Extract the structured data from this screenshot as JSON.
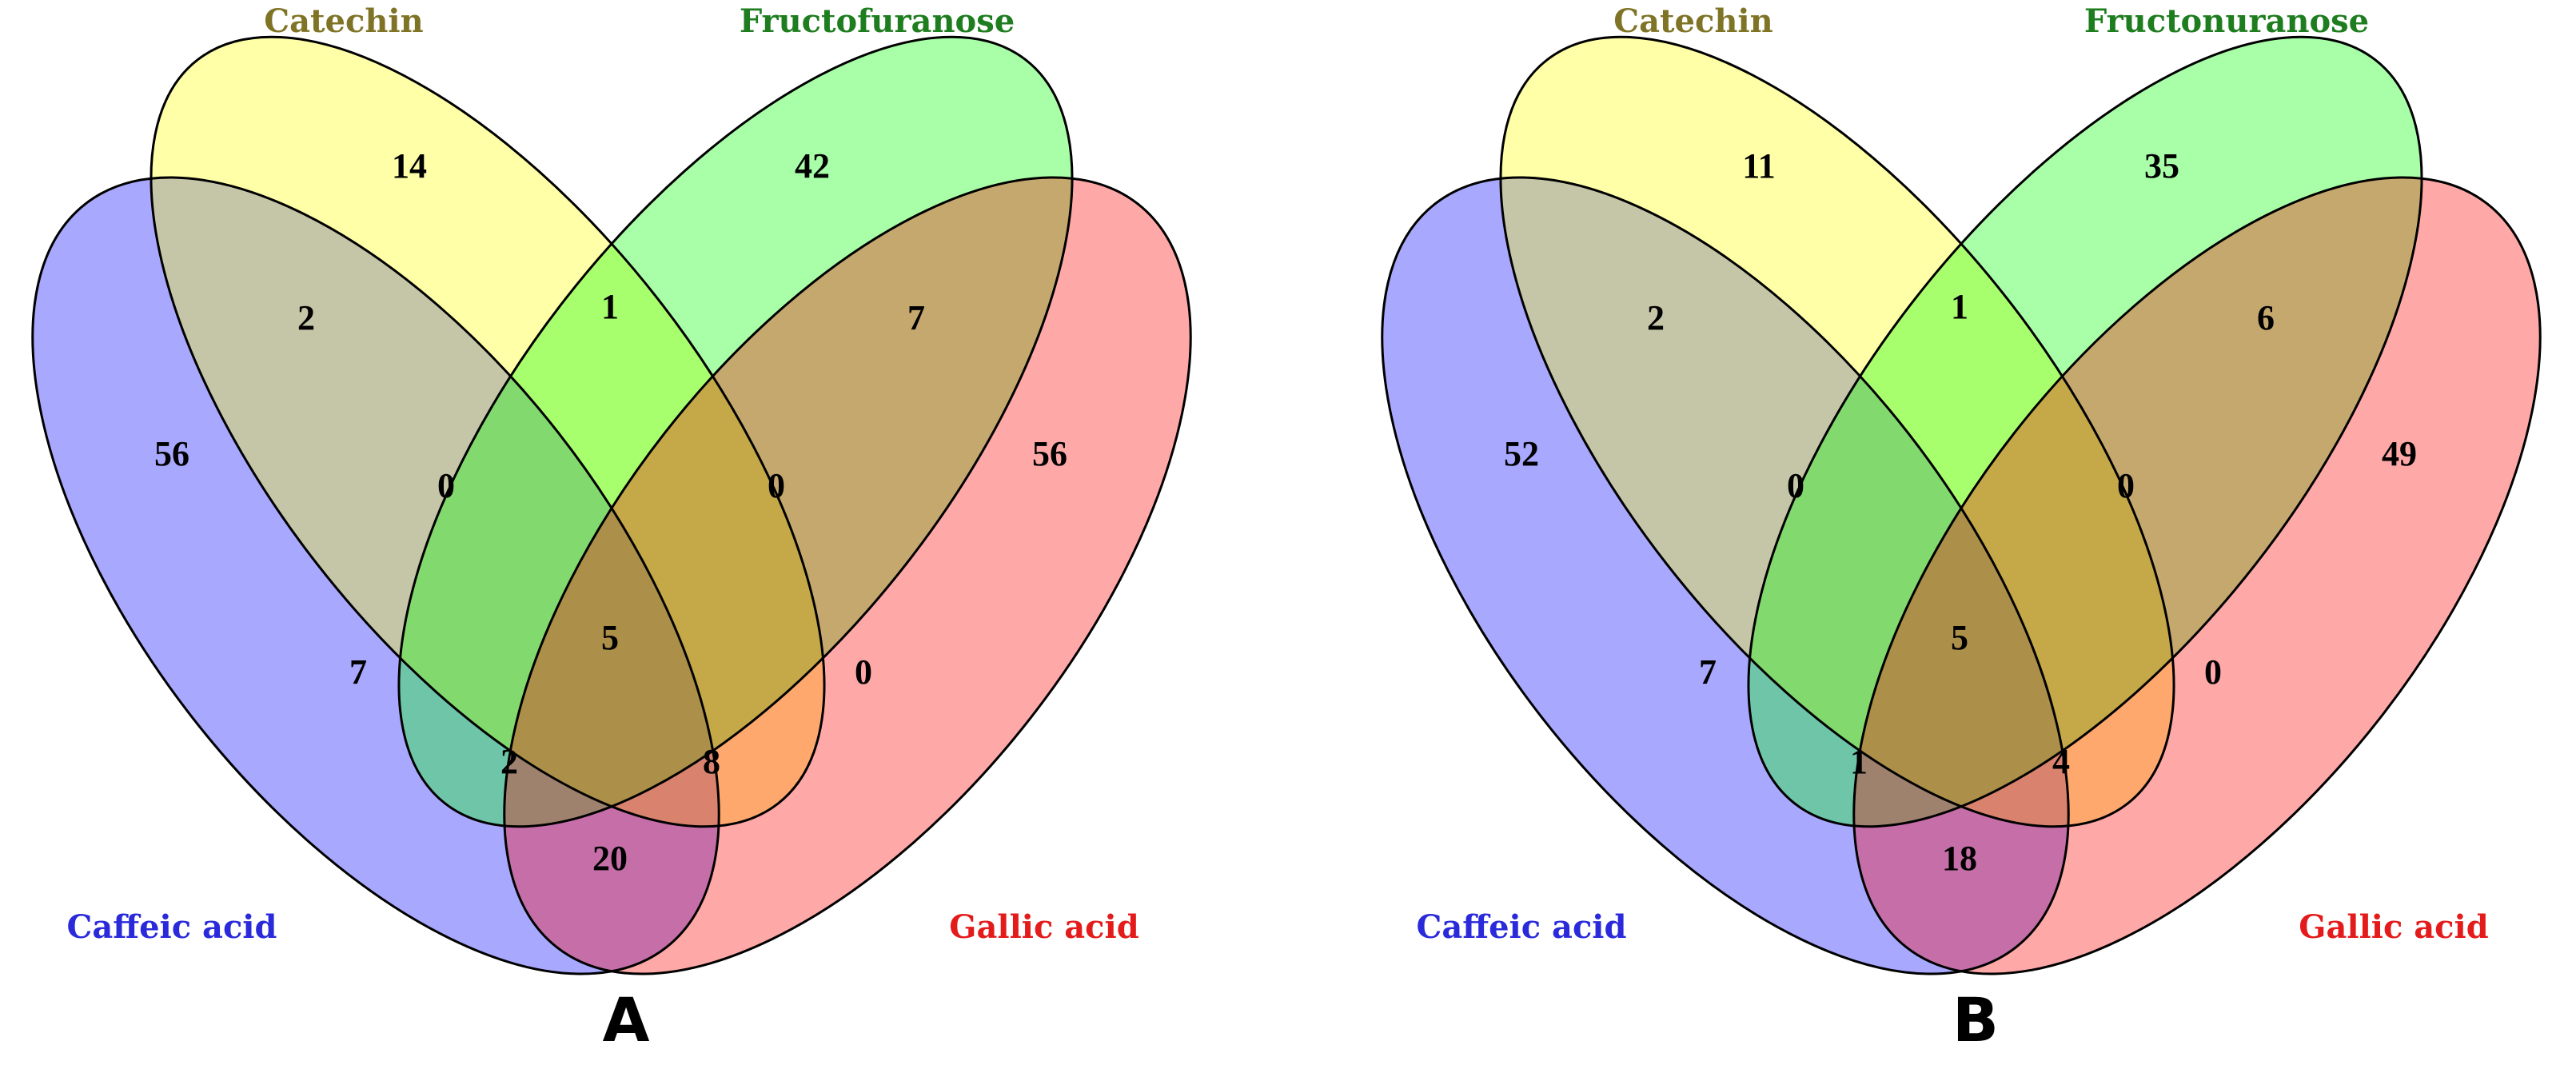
{
  "set_colors": {
    "caffeic": "#0000ff",
    "catechin": "#ffff00",
    "fructose": "#00ff00",
    "gallic": "#ff0000"
  },
  "label_colors": {
    "caffeic": "#2a2adb",
    "catechin": "#7f7426",
    "fructose": "#1e7d1e",
    "gallic": "#e31b1b"
  },
  "panels": [
    {
      "panel_label": "A",
      "sets": {
        "caffeic": "Caffeic acid",
        "catechin": "Catechin",
        "fructose": "Fructofuranose",
        "gallic": "Gallic acid"
      },
      "counts": {
        "caffeic_only": "56",
        "catechin_only": "14",
        "fructose_only": "42",
        "gallic_only": "56",
        "caffeic_catechin": "2",
        "catechin_fructose": "1",
        "fructose_gallic": "7",
        "caffeic_catechin_fructose": "0",
        "catechin_fructose_gallic": "0",
        "caffeic_fructose": "7",
        "all_four": "5",
        "catechin_gallic": "0",
        "caffeic_fructose_gallic": "2",
        "caffeic_catechin_gallic": "8",
        "caffeic_gallic": "20"
      }
    },
    {
      "panel_label": "B",
      "sets": {
        "caffeic": "Caffeic acid",
        "catechin": "Catechin",
        "fructose": "Fructonuranose",
        "gallic": "Gallic acid"
      },
      "counts": {
        "caffeic_only": "52",
        "catechin_only": "11",
        "fructose_only": "35",
        "gallic_only": "49",
        "caffeic_catechin": "2",
        "catechin_fructose": "1",
        "fructose_gallic": "6",
        "caffeic_catechin_fructose": "0",
        "catechin_fructose_gallic": "0",
        "caffeic_fructose": "7",
        "all_four": "5",
        "catechin_gallic": "0",
        "caffeic_fructose_gallic": "1",
        "caffeic_catechin_gallic": "4",
        "caffeic_gallic": "18"
      }
    }
  ]
}
